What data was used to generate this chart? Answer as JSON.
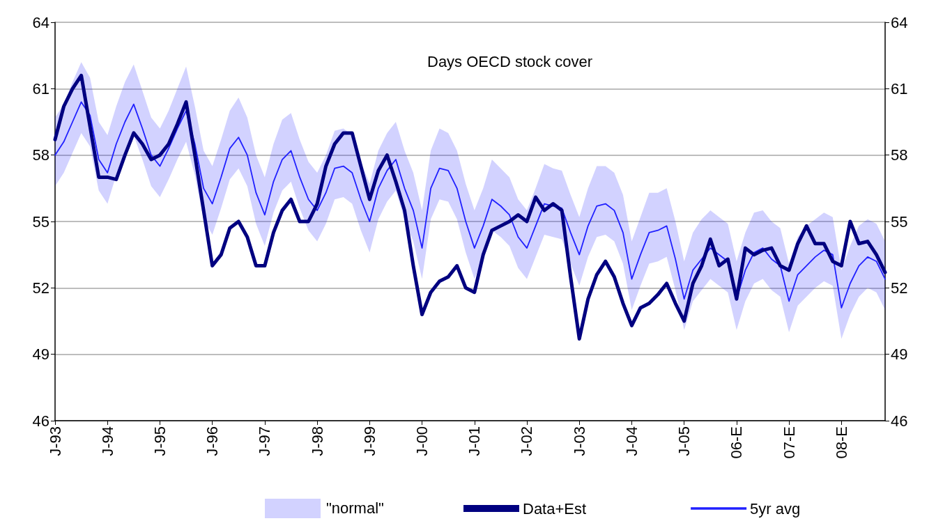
{
  "chart_data": {
    "type": "line",
    "title": "Days OECD stock cover",
    "annotations": [
      "\"normal\""
    ],
    "categories": [
      "J-93",
      null,
      null,
      null,
      null,
      null,
      "J-94",
      null,
      null,
      null,
      null,
      null,
      "J-95",
      null,
      null,
      null,
      null,
      null,
      "J-96",
      null,
      null,
      null,
      null,
      null,
      "J-97",
      null,
      null,
      null,
      null,
      null,
      "J-98",
      null,
      null,
      null,
      null,
      null,
      "J-99",
      null,
      null,
      null,
      null,
      null,
      "J-00",
      null,
      null,
      null,
      null,
      null,
      "J-01",
      null,
      null,
      null,
      null,
      null,
      "J-02",
      null,
      null,
      null,
      null,
      null,
      "J-03",
      null,
      null,
      null,
      null,
      null,
      "J-04",
      null,
      null,
      null,
      null,
      null,
      "J-05",
      null,
      null,
      null,
      null,
      null,
      "06-E",
      null,
      null,
      null,
      null,
      null,
      "07-E",
      null,
      null,
      null,
      null,
      null,
      "08-E",
      null,
      null,
      null,
      null,
      null
    ],
    "series": [
      {
        "name": "Data+Est",
        "color": "#000080",
        "values": [
          58.7,
          60.2,
          61.0,
          61.6,
          59.3,
          57.0,
          57.0,
          56.9,
          58.0,
          59.0,
          58.5,
          57.8,
          58.0,
          58.5,
          59.4,
          60.4,
          58.0,
          55.5,
          53.0,
          53.5,
          54.7,
          55.0,
          54.3,
          53.0,
          53.0,
          54.5,
          55.5,
          56.0,
          55.0,
          55.0,
          55.8,
          57.5,
          58.5,
          59.0,
          59.0,
          57.5,
          56.0,
          57.3,
          58.0,
          56.8,
          55.5,
          53.0,
          50.8,
          51.8,
          52.3,
          52.5,
          53.0,
          52.0,
          51.8,
          53.5,
          54.6,
          54.8,
          55.0,
          55.3,
          55.0,
          56.1,
          55.5,
          55.8,
          55.5,
          52.5,
          49.7,
          51.5,
          52.6,
          53.2,
          52.5,
          51.3,
          50.3,
          51.1,
          51.3,
          51.7,
          52.2,
          51.3,
          50.5,
          52.2,
          53.0,
          54.2,
          53.0,
          53.3,
          51.5,
          53.8,
          53.5,
          53.7,
          53.8,
          53.0,
          52.8,
          54.0,
          54.8,
          54.0,
          54.0,
          53.2,
          53.0,
          55.0,
          54.0,
          54.1,
          53.5,
          52.7
        ]
      },
      {
        "name": "5yr avg",
        "color": "#2020ff",
        "values": [
          58.0,
          58.6,
          59.5,
          60.4,
          59.8,
          57.8,
          57.2,
          58.5,
          59.5,
          60.3,
          59.2,
          58.0,
          57.5,
          58.3,
          59.2,
          60.0,
          58.5,
          56.5,
          55.8,
          57.0,
          58.3,
          58.8,
          58.0,
          56.3,
          55.3,
          56.8,
          57.8,
          58.2,
          57.0,
          56.0,
          55.5,
          56.3,
          57.4,
          57.5,
          57.2,
          56.0,
          55.0,
          56.5,
          57.3,
          57.8,
          56.5,
          55.5,
          53.8,
          56.5,
          57.4,
          57.3,
          56.5,
          55.0,
          53.8,
          54.8,
          56.0,
          55.7,
          55.3,
          54.3,
          53.8,
          54.8,
          55.8,
          55.7,
          55.6,
          54.5,
          53.5,
          54.8,
          55.7,
          55.8,
          55.5,
          54.5,
          52.4,
          53.5,
          54.5,
          54.6,
          54.8,
          53.3,
          51.5,
          52.8,
          53.3,
          53.8,
          53.5,
          53.2,
          51.5,
          52.8,
          53.6,
          53.8,
          53.3,
          53.0,
          51.4,
          52.6,
          53.0,
          53.4,
          53.7,
          53.5,
          51.1,
          52.2,
          53.0,
          53.4,
          53.2,
          52.4
        ],
        "upper": [
          59.7,
          60.3,
          61.3,
          62.2,
          61.5,
          59.5,
          58.9,
          60.2,
          61.3,
          62.1,
          60.9,
          59.7,
          59.2,
          60.0,
          61.0,
          62.0,
          60.2,
          58.2,
          57.5,
          58.7,
          60.0,
          60.6,
          59.7,
          58.0,
          57.0,
          58.5,
          59.6,
          59.9,
          58.7,
          57.7,
          57.2,
          58.0,
          59.1,
          59.2,
          58.9,
          57.7,
          56.7,
          58.2,
          59.0,
          59.5,
          58.2,
          57.2,
          55.5,
          58.2,
          59.2,
          59.0,
          58.2,
          56.7,
          55.5,
          56.5,
          57.8,
          57.4,
          57.0,
          56.0,
          55.5,
          56.5,
          57.6,
          57.4,
          57.3,
          56.2,
          55.2,
          56.5,
          57.5,
          57.5,
          57.2,
          56.2,
          54.1,
          55.2,
          56.3,
          56.3,
          56.5,
          55.0,
          53.2,
          54.5,
          55.1,
          55.5,
          55.2,
          54.9,
          53.2,
          54.5,
          55.4,
          55.5,
          55.0,
          54.7,
          53.1,
          54.3,
          54.8,
          55.1,
          55.4,
          55.2,
          52.8,
          53.9,
          54.8,
          55.1,
          54.9,
          54.1
        ],
        "lower": [
          56.6,
          57.2,
          58.1,
          59.0,
          58.4,
          56.4,
          55.8,
          57.1,
          58.1,
          58.9,
          57.8,
          56.6,
          56.1,
          56.9,
          57.8,
          58.6,
          57.1,
          55.1,
          54.4,
          55.6,
          56.9,
          57.4,
          56.6,
          54.9,
          53.9,
          55.4,
          56.4,
          56.8,
          55.6,
          54.6,
          54.1,
          54.9,
          56.0,
          56.1,
          55.8,
          54.6,
          53.6,
          55.1,
          55.9,
          56.4,
          55.1,
          54.1,
          52.4,
          55.1,
          56.0,
          55.9,
          55.1,
          53.6,
          52.4,
          53.4,
          54.6,
          54.3,
          53.9,
          52.9,
          52.4,
          53.4,
          54.4,
          54.3,
          54.2,
          53.1,
          52.1,
          53.4,
          54.3,
          54.4,
          54.1,
          53.1,
          51.0,
          52.1,
          53.1,
          53.2,
          53.4,
          51.9,
          50.1,
          51.4,
          51.9,
          52.4,
          52.1,
          51.8,
          50.1,
          51.4,
          52.2,
          52.4,
          51.9,
          51.6,
          50.0,
          51.2,
          51.6,
          52.0,
          52.3,
          52.1,
          49.7,
          50.8,
          51.6,
          52.0,
          51.8,
          51.0
        ]
      }
    ],
    "ylim": [
      46,
      64
    ],
    "yticks": [
      46,
      49,
      52,
      55,
      58,
      61,
      64
    ],
    "y2lim": [
      46,
      64
    ],
    "y2ticks": [
      46,
      49,
      52,
      55,
      58,
      61,
      64
    ],
    "grid": "y",
    "legend": "bottom",
    "marker": "none",
    "line_style": "solid"
  }
}
